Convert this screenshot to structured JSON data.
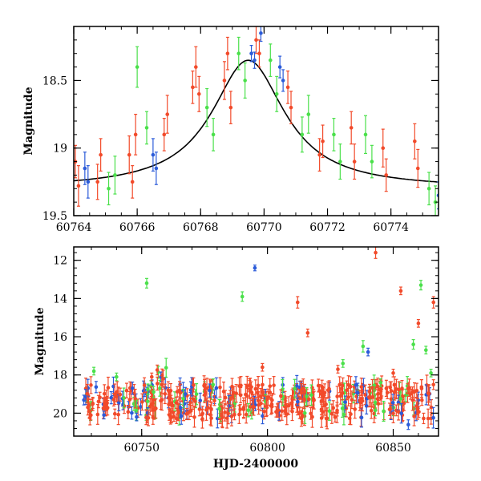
{
  "colors": {
    "red": "#f24a2a",
    "green": "#4ae04a",
    "blue": "#2b5bd9",
    "model": "#000000"
  },
  "chart_data": [
    {
      "type": "scatter",
      "panel": "top",
      "xlabel": "",
      "ylabel": "Magnitude",
      "xlim": [
        60764,
        60775.5
      ],
      "ylim": [
        19.5,
        18.1
      ],
      "y_inverted": true,
      "xticks": [
        "60764",
        "60766",
        "60768",
        "60770",
        "60772",
        "60774"
      ],
      "xtick_values": [
        60764,
        60766,
        60768,
        60770,
        60772,
        60774
      ],
      "yticks": [
        "18.5",
        "19",
        "19.5"
      ],
      "ytick_values": [
        18.5,
        19,
        19.5
      ],
      "model_curve": {
        "shape": "lorentzian",
        "baseline": 19.3,
        "peak": 18.35,
        "center": 60769.5,
        "width": 1.4
      },
      "series": [
        {
          "color_key": "red",
          "points": [
            [
              60764.05,
              19.1,
              0.12
            ],
            [
              60764.15,
              19.28,
              0.15
            ],
            [
              60764.75,
              19.25,
              0.13
            ],
            [
              60764.85,
              19.05,
              0.12
            ],
            [
              60765.75,
              19.05,
              0.14
            ],
            [
              60765.85,
              19.25,
              0.12
            ],
            [
              60765.95,
              18.9,
              0.15
            ],
            [
              60766.85,
              18.9,
              0.12
            ],
            [
              60766.95,
              18.75,
              0.14
            ],
            [
              60767.75,
              18.55,
              0.12
            ],
            [
              60767.85,
              18.4,
              0.15
            ],
            [
              60767.95,
              18.6,
              0.13
            ],
            [
              60768.75,
              18.5,
              0.14
            ],
            [
              60768.85,
              18.3,
              0.12
            ],
            [
              60768.95,
              18.7,
              0.12
            ],
            [
              60769.75,
              18.2,
              0.1
            ],
            [
              60769.85,
              18.3,
              0.1
            ],
            [
              60770.75,
              18.55,
              0.12
            ],
            [
              60770.85,
              18.7,
              0.12
            ],
            [
              60771.75,
              19.05,
              0.12
            ],
            [
              60771.85,
              18.95,
              0.12
            ],
            [
              60772.75,
              18.85,
              0.12
            ],
            [
              60772.85,
              19.1,
              0.13
            ],
            [
              60773.75,
              19.0,
              0.14
            ],
            [
              60773.85,
              19.2,
              0.12
            ],
            [
              60774.75,
              18.95,
              0.13
            ],
            [
              60774.85,
              19.15,
              0.14
            ]
          ]
        },
        {
          "color_key": "green",
          "points": [
            [
              60765.1,
              19.3,
              0.12
            ],
            [
              60765.3,
              19.2,
              0.14
            ],
            [
              60766.0,
              18.4,
              0.15
            ],
            [
              60766.3,
              18.85,
              0.12
            ],
            [
              60768.2,
              18.7,
              0.14
            ],
            [
              60768.4,
              18.9,
              0.12
            ],
            [
              60769.2,
              18.3,
              0.12
            ],
            [
              60769.4,
              18.5,
              0.13
            ],
            [
              60770.2,
              18.35,
              0.12
            ],
            [
              60770.4,
              18.6,
              0.13
            ],
            [
              60771.2,
              18.9,
              0.13
            ],
            [
              60771.4,
              18.75,
              0.14
            ],
            [
              60772.2,
              18.9,
              0.12
            ],
            [
              60772.4,
              19.1,
              0.13
            ],
            [
              60773.2,
              18.9,
              0.14
            ],
            [
              60773.4,
              19.1,
              0.12
            ],
            [
              60775.2,
              19.3,
              0.12
            ],
            [
              60775.4,
              19.4,
              0.12
            ]
          ]
        },
        {
          "color_key": "blue",
          "points": [
            [
              60764.35,
              19.15,
              0.12
            ],
            [
              60764.45,
              19.25,
              0.12
            ],
            [
              60766.5,
              19.05,
              0.12
            ],
            [
              60766.6,
              19.15,
              0.12
            ],
            [
              60769.6,
              18.3,
              0.06
            ],
            [
              60769.7,
              18.35,
              0.06
            ],
            [
              60769.9,
              18.15,
              0.06
            ],
            [
              60770.5,
              18.4,
              0.08
            ],
            [
              60770.6,
              18.5,
              0.08
            ],
            [
              60775.5,
              19.35,
              0.1
            ]
          ]
        }
      ]
    },
    {
      "type": "scatter",
      "panel": "bottom",
      "xlabel": "HJD-2400000",
      "ylabel": "Magnitude",
      "xlim": [
        60723,
        60868
      ],
      "ylim": [
        21.2,
        11.3
      ],
      "y_inverted": true,
      "xticks": [
        "60750",
        "60800",
        "60850"
      ],
      "xtick_values": [
        60750,
        60800,
        60850
      ],
      "yticks": [
        "12",
        "14",
        "16",
        "18",
        "20"
      ],
      "ytick_values": [
        12,
        14,
        16,
        18,
        20
      ],
      "series": [
        {
          "color_key": "green",
          "points": [
            [
              60731,
              17.8,
              0.2
            ],
            [
              60740,
              18.1,
              0.2
            ],
            [
              60752,
              13.2,
              0.25
            ],
            [
              60790,
              13.9,
              0.25
            ],
            [
              60830,
              17.4,
              0.2
            ],
            [
              60838,
              16.5,
              0.3
            ],
            [
              60845,
              18.4,
              0.2
            ],
            [
              60858,
              16.4,
              0.25
            ],
            [
              60861,
              13.3,
              0.25
            ],
            [
              60863,
              16.7,
              0.2
            ],
            [
              60865,
              17.9,
              0.2
            ]
          ]
        },
        {
          "color_key": "blue",
          "points": [
            [
              60735,
              20.1,
              0.2
            ],
            [
              60748,
              20.2,
              0.2
            ],
            [
              60795,
              12.4,
              0.15
            ],
            [
              60812,
              19.4,
              0.2
            ],
            [
              60840,
              16.8,
              0.2
            ],
            [
              60856,
              20.6,
              0.25
            ]
          ]
        },
        {
          "color_key": "red",
          "points": [
            [
              60754,
              18.1,
              0.2
            ],
            [
              60798,
              17.6,
              0.2
            ],
            [
              60812,
              14.2,
              0.3
            ],
            [
              60816,
              15.8,
              0.2
            ],
            [
              60828,
              17.7,
              0.2
            ],
            [
              60843,
              11.6,
              0.3
            ],
            [
              60850,
              17.9,
              0.2
            ],
            [
              60853,
              13.6,
              0.2
            ],
            [
              60860,
              15.3,
              0.2
            ],
            [
              60866,
              14.2,
              0.3
            ]
          ]
        }
      ],
      "dense_band": {
        "description": "Dense cluster of red points with green and blue mixed in",
        "x_range": [
          60727,
          60866
        ],
        "center_y": 19.4,
        "spread_y": 0.9
      }
    }
  ]
}
